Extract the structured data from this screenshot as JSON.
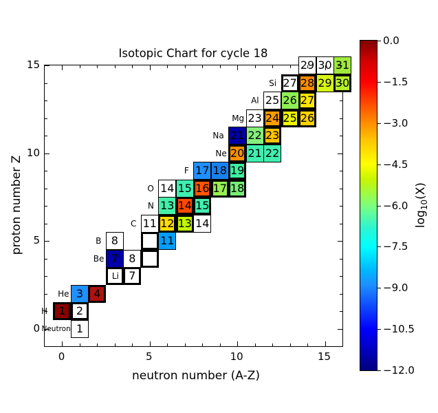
{
  "chart_data": {
    "type": "heatmap",
    "title": "Isotopic Chart for cycle 18",
    "xlabel": "neutron number (A-Z)",
    "ylabel": "proton number Z",
    "xlim": [
      -1,
      16
    ],
    "ylim": [
      -1,
      15
    ],
    "x_ticks": [
      "0",
      "5",
      "10",
      "15"
    ],
    "y_ticks": [
      "0",
      "5",
      "10",
      "15"
    ],
    "x_tick_values": [
      0,
      5,
      10,
      15
    ],
    "y_tick_values": [
      0,
      5,
      10,
      15
    ],
    "grid": false,
    "colorbar": {
      "label_log": "log",
      "label_sub": "10",
      "label_rest": "(X)",
      "colormap": "jet",
      "vmax": 0.0,
      "vmin": -12.0,
      "ticks": [
        "0.0",
        "−1.5",
        "−3.0",
        "−4.5",
        "−6.0",
        "−7.5",
        "−9.0",
        "−10.5",
        "−12.0"
      ],
      "tick_values": [
        0.0,
        -1.5,
        -3.0,
        -4.5,
        -6.0,
        -7.5,
        -9.0,
        -10.5,
        -12.0
      ]
    },
    "element_labels": [
      {
        "symbol": "Neutron",
        "n": 0,
        "z": 0,
        "dx": 0
      },
      {
        "symbol": "H",
        "n": -1,
        "z": 1,
        "dx": -6
      },
      {
        "symbol": "He",
        "n": 0,
        "z": 2,
        "dx": 0
      },
      {
        "symbol": "Li",
        "n": 3,
        "z": 3,
        "dx": -4
      },
      {
        "symbol": "Be",
        "n": 2,
        "z": 4,
        "dx": 0
      },
      {
        "symbol": "B",
        "n": 2,
        "z": 5,
        "dx": -4
      },
      {
        "symbol": "C",
        "n": 4,
        "z": 6,
        "dx": -4
      },
      {
        "symbol": "N",
        "n": 5,
        "z": 7,
        "dx": -4
      },
      {
        "symbol": "O",
        "n": 5,
        "z": 8,
        "dx": -4
      },
      {
        "symbol": "F",
        "n": 7,
        "z": 9,
        "dx": -4
      },
      {
        "symbol": "Ne",
        "n": 9,
        "z": 10,
        "dx": 0
      },
      {
        "symbol": "Na",
        "n": 9,
        "z": 11,
        "dx": -4
      },
      {
        "symbol": "Mg",
        "n": 10,
        "z": 12,
        "dx": 0
      },
      {
        "symbol": "Al",
        "n": 11,
        "z": 13,
        "dx": -4
      },
      {
        "symbol": "Si",
        "n": 12,
        "z": 14,
        "dx": -4
      }
    ],
    "cells": [
      {
        "el": "n",
        "A": "1",
        "n": 1,
        "z": 0,
        "fill": "#ffffff",
        "border": "thin",
        "log10X": null
      },
      {
        "el": "H",
        "A": "1",
        "n": 0,
        "z": 1,
        "fill": "#8b0000",
        "border": "thick",
        "log10X": -0.2
      },
      {
        "el": "H",
        "A": "2",
        "n": 1,
        "z": 1,
        "fill": "#ffffff",
        "border": "thick",
        "log10X": null
      },
      {
        "el": "He",
        "A": "3",
        "n": 1,
        "z": 2,
        "fill": "#1e90ff",
        "border": "thin",
        "log10X": -9.2
      },
      {
        "el": "He",
        "A": "4",
        "n": 2,
        "z": 2,
        "fill": "#b01111",
        "border": "thick",
        "log10X": -0.7
      },
      {
        "el": "Li",
        "A": "",
        "n": 3,
        "z": 3,
        "fill": "#ffffff",
        "border": "thick",
        "log10X": null
      },
      {
        "el": "Li",
        "A": "7",
        "n": 4,
        "z": 3,
        "fill": "#ffffff",
        "border": "thick",
        "log10X": null
      },
      {
        "el": "Be",
        "A": "7",
        "n": 3,
        "z": 4,
        "fill": "#0000a6",
        "border": "thin",
        "log10X": -11.0
      },
      {
        "el": "Be",
        "A": "8",
        "n": 4,
        "z": 4,
        "fill": "#ffffff",
        "border": "thin",
        "log10X": null
      },
      {
        "el": "Be",
        "A": "",
        "n": 5,
        "z": 4,
        "fill": "#ffffff",
        "border": "thick",
        "log10X": null
      },
      {
        "el": "B",
        "A": "8",
        "n": 3,
        "z": 5,
        "fill": "#ffffff",
        "border": "thin",
        "log10X": null
      },
      {
        "el": "B",
        "A": "",
        "n": 5,
        "z": 5,
        "fill": "#ffffff",
        "border": "thick",
        "log10X": null
      },
      {
        "el": "B",
        "A": "11",
        "n": 6,
        "z": 5,
        "fill": "#009fff",
        "border": "thin",
        "log10X": -8.8
      },
      {
        "el": "C",
        "A": "11",
        "n": 5,
        "z": 6,
        "fill": "#ffffff",
        "border": "thin",
        "log10X": null
      },
      {
        "el": "C",
        "A": "12",
        "n": 6,
        "z": 6,
        "fill": "#ffdd00",
        "border": "thick",
        "log10X": -4.1
      },
      {
        "el": "C",
        "A": "13",
        "n": 7,
        "z": 6,
        "fill": "#c3f500",
        "border": "thick",
        "log10X": -5.0
      },
      {
        "el": "C",
        "A": "14",
        "n": 8,
        "z": 6,
        "fill": "#ffffff",
        "border": "thin",
        "log10X": null
      },
      {
        "el": "N",
        "A": "13",
        "n": 6,
        "z": 7,
        "fill": "#45efa8",
        "border": "thin",
        "log10X": -6.9
      },
      {
        "el": "N",
        "A": "14",
        "n": 7,
        "z": 7,
        "fill": "#ff4800",
        "border": "thick",
        "log10X": -1.9
      },
      {
        "el": "N",
        "A": "15",
        "n": 8,
        "z": 7,
        "fill": "#40efb0",
        "border": "thick",
        "log10X": -7.0
      },
      {
        "el": "O",
        "A": "14",
        "n": 6,
        "z": 8,
        "fill": "#ffffff",
        "border": "thin",
        "log10X": null
      },
      {
        "el": "O",
        "A": "15",
        "n": 7,
        "z": 8,
        "fill": "#40efb0",
        "border": "thin",
        "log10X": -7.0
      },
      {
        "el": "O",
        "A": "16",
        "n": 8,
        "z": 8,
        "fill": "#ff5400",
        "border": "thick",
        "log10X": -2.0
      },
      {
        "el": "O",
        "A": "17",
        "n": 9,
        "z": 8,
        "fill": "#97f050",
        "border": "thick",
        "log10X": -5.7
      },
      {
        "el": "O",
        "A": "18",
        "n": 10,
        "z": 8,
        "fill": "#77ee77",
        "border": "thick",
        "log10X": -6.2
      },
      {
        "el": "F",
        "A": "17",
        "n": 8,
        "z": 9,
        "fill": "#1e90ff",
        "border": "thin",
        "log10X": -9.2
      },
      {
        "el": "F",
        "A": "18",
        "n": 9,
        "z": 9,
        "fill": "#1881f0",
        "border": "thin",
        "log10X": -9.4
      },
      {
        "el": "F",
        "A": "19",
        "n": 10,
        "z": 9,
        "fill": "#3df0a0",
        "border": "thick",
        "log10X": -6.9
      },
      {
        "el": "Ne",
        "A": "20",
        "n": 10,
        "z": 10,
        "fill": "#ff9100",
        "border": "thick",
        "log10X": -3.0
      },
      {
        "el": "Ne",
        "A": "21",
        "n": 11,
        "z": 10,
        "fill": "#40efb0",
        "border": "thin",
        "log10X": -7.0
      },
      {
        "el": "Ne",
        "A": "22",
        "n": 12,
        "z": 10,
        "fill": "#40efb0",
        "border": "thin",
        "log10X": -7.0
      },
      {
        "el": "Na",
        "A": "21",
        "n": 10,
        "z": 11,
        "fill": "#0000a6",
        "border": "thin",
        "log10X": -11.0
      },
      {
        "el": "Na",
        "A": "22",
        "n": 11,
        "z": 11,
        "fill": "#86ee7c",
        "border": "thin",
        "log10X": -6.1
      },
      {
        "el": "Na",
        "A": "23",
        "n": 12,
        "z": 11,
        "fill": "#ffc400",
        "border": "thick",
        "log10X": -3.7
      },
      {
        "el": "Mg",
        "A": "23",
        "n": 11,
        "z": 12,
        "fill": "#ffffff",
        "border": "thin",
        "log10X": null
      },
      {
        "el": "Mg",
        "A": "24",
        "n": 12,
        "z": 12,
        "fill": "#ff9c00",
        "border": "thick",
        "log10X": -3.0
      },
      {
        "el": "Mg",
        "A": "25",
        "n": 13,
        "z": 12,
        "fill": "#edf500",
        "border": "thick",
        "log10X": -4.5
      },
      {
        "el": "Mg",
        "A": "26",
        "n": 14,
        "z": 12,
        "fill": "#ffd200",
        "border": "thick",
        "log10X": -3.9
      },
      {
        "el": "Al",
        "A": "25",
        "n": 12,
        "z": 13,
        "fill": "#ffffff",
        "border": "thin",
        "log10X": null
      },
      {
        "el": "Al",
        "A": "26",
        "n": 13,
        "z": 13,
        "fill": "#90ee55",
        "border": "thin",
        "log10X": -5.9
      },
      {
        "el": "Al",
        "A": "27",
        "n": 14,
        "z": 13,
        "fill": "#ffe600",
        "border": "thick",
        "log10X": -4.3
      },
      {
        "el": "Si",
        "A": "27",
        "n": 13,
        "z": 14,
        "fill": "#ffffff",
        "border": "thick",
        "log10X": null
      },
      {
        "el": "Si",
        "A": "28",
        "n": 14,
        "z": 14,
        "fill": "#ff8c00",
        "border": "thick",
        "log10X": -2.9
      },
      {
        "el": "Si",
        "A": "29",
        "n": 15,
        "z": 14,
        "fill": "#d8f518",
        "border": "thin",
        "log10X": -4.8
      },
      {
        "el": "Si",
        "A": "30",
        "n": 16,
        "z": 14,
        "fill": "#b5f028",
        "border": "thick",
        "log10X": -5.3
      },
      {
        "el": "P",
        "A": "29",
        "n": 14,
        "z": 15,
        "fill": "#ffffff",
        "border": "thin",
        "log10X": null
      },
      {
        "el": "P",
        "A": "30",
        "n": 15,
        "z": 15,
        "fill": "#ffffff",
        "border": "thin",
        "log10X": null
      },
      {
        "el": "P",
        "A": "31",
        "n": 16,
        "z": 15,
        "fill": "#9fea3c",
        "border": "thin",
        "log10X": -5.5
      }
    ]
  }
}
